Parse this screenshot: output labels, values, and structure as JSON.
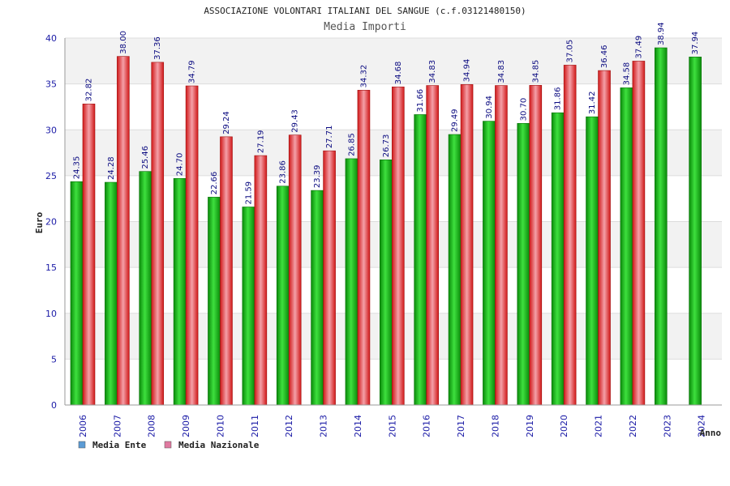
{
  "chart_data": {
    "type": "bar",
    "title": "ASSOCIAZIONE VOLONTARI ITALIANI DEL SANGUE (c.f.03121480150)",
    "subtitle": "Media Importi",
    "xlabel": "Anno",
    "ylabel": "Euro",
    "ylim": [
      0,
      40
    ],
    "yticks": [
      0,
      5,
      10,
      15,
      20,
      25,
      30,
      35,
      40
    ],
    "grid": true,
    "legend_position": "bottom-left",
    "categories": [
      "2006",
      "2007",
      "2008",
      "2009",
      "2010",
      "2011",
      "2012",
      "2013",
      "2014",
      "2015",
      "2016",
      "2017",
      "2018",
      "2019",
      "2020",
      "2021",
      "2022",
      "2023",
      "2024"
    ],
    "series": [
      {
        "name": "Media Ente",
        "color": "#10b010",
        "legend_color": "#5b9bd5",
        "values": [
          24.35,
          24.28,
          25.46,
          24.7,
          22.66,
          21.59,
          23.86,
          23.39,
          26.85,
          26.73,
          31.66,
          29.49,
          30.94,
          30.7,
          31.86,
          31.42,
          34.58,
          38.94,
          37.94
        ],
        "labels": [
          "24.35",
          "24.28",
          "25.46",
          "24.70",
          "22.66",
          "21.59",
          "23.86",
          "23.39",
          "26.85",
          "26.73",
          "31.66",
          "29.49",
          "30.94",
          "30.70",
          "31.86",
          "31.42",
          "34.58",
          "38.94",
          "37.94"
        ]
      },
      {
        "name": "Media Nazionale",
        "color": "#e02828",
        "legend_color": "#e07aa0",
        "values": [
          32.82,
          38.0,
          37.36,
          34.79,
          29.24,
          27.19,
          29.43,
          27.71,
          34.32,
          34.68,
          34.83,
          34.94,
          34.83,
          34.85,
          37.05,
          36.46,
          37.49,
          null,
          null
        ],
        "labels": [
          "32.82",
          "38.00",
          "37.36",
          "34.79",
          "29.24",
          "27.19",
          "29.43",
          "27.71",
          "34.32",
          "34.68",
          "34.83",
          "34.94",
          "34.83",
          "34.85",
          "37.05",
          "36.46",
          "37.49",
          null,
          null
        ]
      }
    ]
  }
}
